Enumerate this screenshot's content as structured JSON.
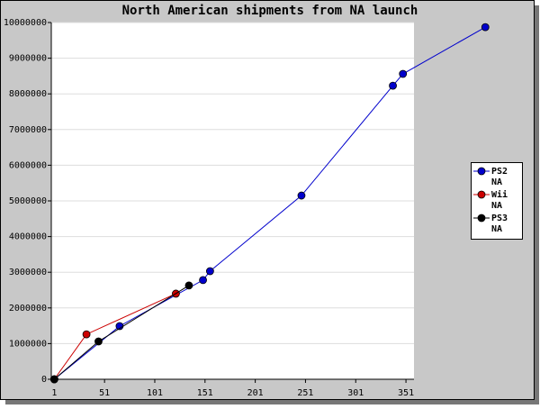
{
  "chart_data": {
    "type": "line",
    "title": "North American shipments from NA launch",
    "series": [
      {
        "name": "PS2 NA",
        "color": "#0000cc",
        "x": [
          1,
          66,
          149,
          156,
          247,
          338,
          348,
          430
        ],
        "values": [
          0,
          1490000,
          2780000,
          3030000,
          5150000,
          8230000,
          8560000,
          9870000
        ]
      },
      {
        "name": "Wii NA",
        "color": "#cc0000",
        "x": [
          1,
          33,
          122
        ],
        "values": [
          0,
          1260000,
          2400000
        ]
      },
      {
        "name": "PS3 NA",
        "color": "#000000",
        "x": [
          1,
          45,
          135
        ],
        "values": [
          0,
          1060000,
          2630000
        ]
      }
    ],
    "xlim": [
      -2,
      359
    ],
    "xticks": [
      1,
      51,
      101,
      151,
      201,
      251,
      301,
      351
    ],
    "ylim": [
      0,
      10000000
    ],
    "yticks": [
      0,
      1000000,
      2000000,
      3000000,
      4000000,
      5000000,
      6000000,
      7000000,
      8000000,
      9000000,
      10000000
    ],
    "grid": true,
    "legend": "right"
  }
}
